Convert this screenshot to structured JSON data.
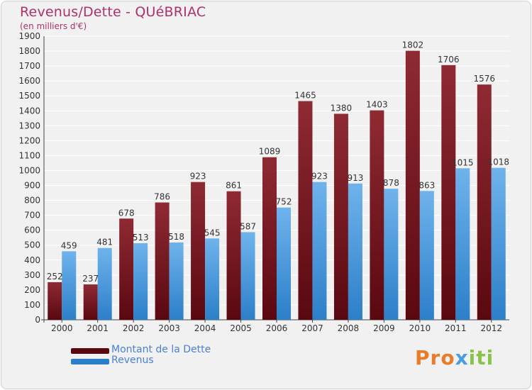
{
  "colors": {
    "dette_top": "#8f2a33",
    "dette_bottom": "#5a0810",
    "revenus_top": "#6fb3ec",
    "revenus_bottom": "#2c7fc9",
    "grid": "#ffffff"
  },
  "logo": {
    "text": "Proxiti",
    "parts": [
      "Pro",
      "x",
      "iti"
    ]
  },
  "chart_data": {
    "type": "bar",
    "title": "Revenus/Dette - QUéBRIAC",
    "subtitle": "(en milliers d'€)",
    "xlabel": "",
    "ylabel": "",
    "ylim": [
      0,
      1900
    ],
    "yticks": [
      0,
      100,
      200,
      300,
      400,
      500,
      600,
      700,
      800,
      900,
      1000,
      1100,
      1200,
      1300,
      1400,
      1500,
      1600,
      1700,
      1800,
      1900
    ],
    "grid": true,
    "legend_position": "bottom-left",
    "categories": [
      "2000",
      "2001",
      "2002",
      "2003",
      "2004",
      "2005",
      "2006",
      "2007",
      "2008",
      "2009",
      "2010",
      "2011",
      "2012"
    ],
    "series": [
      {
        "name": "Montant de la Dette",
        "values": [
          252,
          237,
          678,
          786,
          923,
          861,
          1089,
          1465,
          1380,
          1403,
          1802,
          1706,
          1576
        ]
      },
      {
        "name": "Revenus",
        "values": [
          459,
          481,
          513,
          518,
          545,
          587,
          752,
          923,
          913,
          878,
          863,
          1015,
          1018
        ]
      }
    ]
  }
}
